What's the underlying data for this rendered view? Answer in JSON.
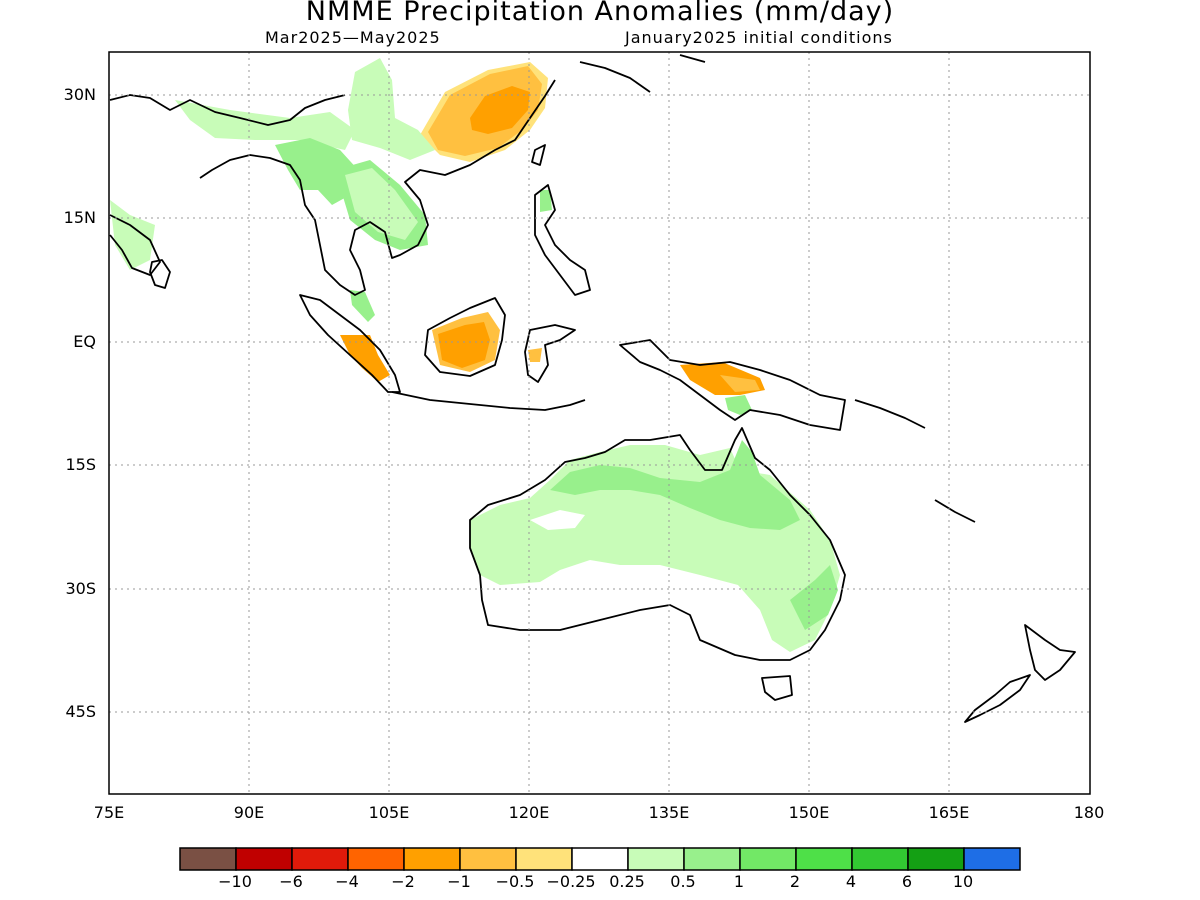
{
  "header": {
    "title": "NMME Precipitation Anomalies (mm/day)",
    "period": "Mar2025—May2025",
    "init": "January2025 initial conditions"
  },
  "axes": {
    "lat_labels": [
      "30N",
      "15N",
      "EQ",
      "15S",
      "30S",
      "45S"
    ],
    "lon_labels": [
      "75E",
      "90E",
      "105E",
      "120E",
      "135E",
      "150E",
      "165E",
      "180"
    ]
  },
  "colorbar": {
    "labels": [
      "−10",
      "−6",
      "−4",
      "−2",
      "−1",
      "−0.5",
      "−0.25",
      "0.25",
      "0.5",
      "1",
      "2",
      "4",
      "6",
      "10"
    ],
    "colors": [
      "#7a5044",
      "#c00000",
      "#e01a0a",
      "#ff6400",
      "#ffa000",
      "#ffc040",
      "#ffe27a",
      "#ffffff",
      "#c8fcb8",
      "#98f08c",
      "#72e866",
      "#4ee048",
      "#32c832",
      "#14a014",
      "#1e6ee6"
    ]
  },
  "map": {
    "colors": {
      "dry_light": "#ffe27a",
      "dry": "#ffc040",
      "dry_strong": "#ffa000",
      "wet_light": "#c8fcb8",
      "wet": "#98f08c",
      "wet_strong": "#72e866",
      "coast": "#000000",
      "grid": "#999999"
    }
  }
}
